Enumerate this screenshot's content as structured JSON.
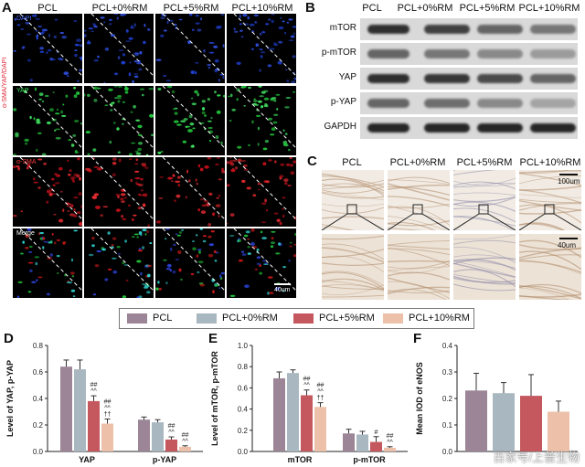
{
  "panel_letters": {
    "A": "A",
    "B": "B",
    "C": "C",
    "D": "D",
    "E": "E",
    "F": "F"
  },
  "groups": [
    "PCL",
    "PCL+0%RM",
    "PCL+5%RM",
    "PCL+10%RM"
  ],
  "colors": {
    "PCL": "#9b8597",
    "PCL+0%RM": "#a9b7c0",
    "PCL+5%RM": "#c4585e",
    "PCL+10%RM": "#ecc0a9"
  },
  "panel_a": {
    "side_label": "α-SMA/YAP/DAPI",
    "rows": [
      "DAPI",
      "YAP",
      "α-SMA",
      "Merge"
    ],
    "scale_bar": "40um"
  },
  "panel_b": {
    "bands": [
      "mTOR",
      "p-mTOR",
      "YAP",
      "p-YAP",
      "GAPDH"
    ]
  },
  "panel_c": {
    "scale_top": "100um",
    "scale_bottom": "40um"
  },
  "legend": [
    "PCL",
    "PCL+0%RM",
    "PCL+5%RM",
    "PCL+10%RM"
  ],
  "watermark": "百家号/上普生物",
  "chart_data": [
    {
      "type": "bar",
      "panel": "D",
      "ylabel": "Level of YAP, p-YAP",
      "categories": [
        "YAP",
        "p-YAP"
      ],
      "ylim": [
        0,
        0.8
      ],
      "yticks": [
        "0.0",
        "0.2",
        "0.4",
        "0.6",
        "0.8"
      ],
      "series": [
        {
          "name": "PCL",
          "values": [
            0.64,
            0.24
          ],
          "errors": [
            0.05,
            0.02
          ]
        },
        {
          "name": "PCL+0%RM",
          "values": [
            0.62,
            0.22
          ],
          "errors": [
            0.07,
            0.02
          ]
        },
        {
          "name": "PCL+5%RM",
          "values": [
            0.38,
            0.09
          ],
          "errors": [
            0.04,
            0.02
          ]
        },
        {
          "name": "PCL+10%RM",
          "values": [
            0.21,
            0.035
          ],
          "errors": [
            0.035,
            0.008
          ]
        }
      ],
      "annotations": [
        {
          "category": 0,
          "series": 2,
          "text": [
            "##",
            "^^"
          ]
        },
        {
          "category": 0,
          "series": 3,
          "text": [
            "##",
            "^^",
            "††"
          ]
        },
        {
          "category": 1,
          "series": 2,
          "text": [
            "##",
            "^^"
          ]
        },
        {
          "category": 1,
          "series": 3,
          "text": [
            "##",
            "^^"
          ]
        }
      ]
    },
    {
      "type": "bar",
      "panel": "E",
      "ylabel": "Level of mTOR, p-mTOR",
      "categories": [
        "mTOR",
        "p-mTOR"
      ],
      "ylim": [
        0,
        1.0
      ],
      "yticks": [
        "0.0",
        "0.2",
        "0.4",
        "0.6",
        "0.8",
        "1.0"
      ],
      "series": [
        {
          "name": "PCL",
          "values": [
            0.69,
            0.17
          ],
          "errors": [
            0.06,
            0.04
          ]
        },
        {
          "name": "PCL+0%RM",
          "values": [
            0.74,
            0.16
          ],
          "errors": [
            0.03,
            0.03
          ]
        },
        {
          "name": "PCL+5%RM",
          "values": [
            0.53,
            0.09
          ],
          "errors": [
            0.05,
            0.05
          ]
        },
        {
          "name": "PCL+10%RM",
          "values": [
            0.42,
            0.035
          ],
          "errors": [
            0.04,
            0.01
          ]
        }
      ],
      "annotations": [
        {
          "category": 0,
          "series": 2,
          "text": [
            "##",
            "^^"
          ]
        },
        {
          "category": 0,
          "series": 3,
          "text": [
            "##",
            "^^",
            "††"
          ]
        },
        {
          "category": 1,
          "series": 2,
          "text": [
            "#"
          ]
        },
        {
          "category": 1,
          "series": 3,
          "text": [
            "##",
            "^^"
          ]
        }
      ]
    },
    {
      "type": "bar",
      "panel": "F",
      "ylabel": "Mean IOD of eNOS",
      "categories": [
        ""
      ],
      "ylim": [
        0,
        0.4
      ],
      "yticks": [
        "0.0",
        "0.1",
        "0.2",
        "0.3",
        "0.4"
      ],
      "series": [
        {
          "name": "PCL",
          "values": [
            0.23
          ],
          "errors": [
            0.065
          ]
        },
        {
          "name": "PCL+0%RM",
          "values": [
            0.22
          ],
          "errors": [
            0.04
          ]
        },
        {
          "name": "PCL+5%RM",
          "values": [
            0.21
          ],
          "errors": [
            0.08
          ]
        },
        {
          "name": "PCL+10%RM",
          "values": [
            0.15
          ],
          "errors": [
            0.04
          ]
        }
      ],
      "annotations": []
    }
  ]
}
